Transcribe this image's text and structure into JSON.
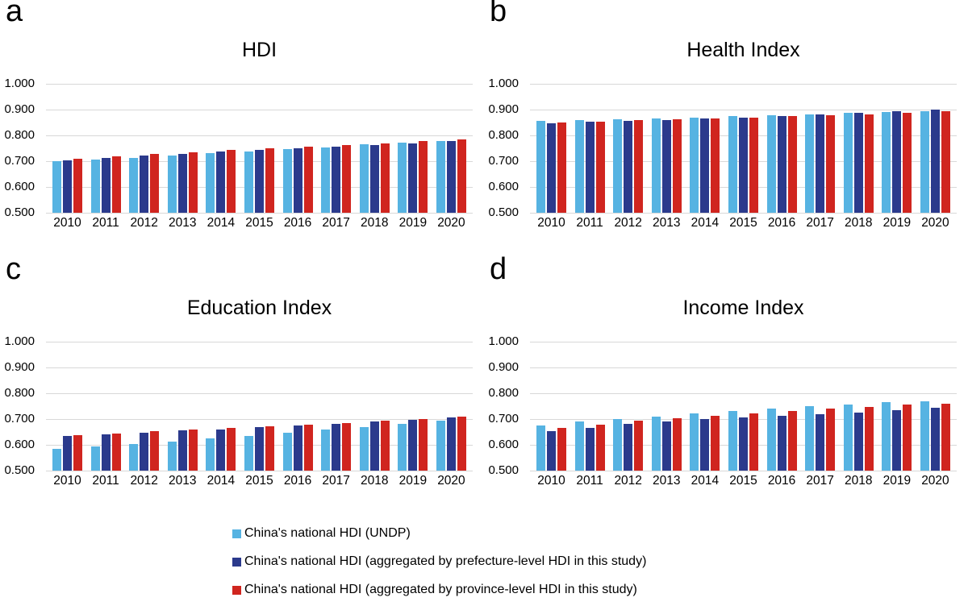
{
  "figure": {
    "background": "#FFFFFF",
    "grid_color": "#D8D8D8",
    "legend_position": "bottom",
    "legend": [
      {
        "key": "undp",
        "label": "China's national HDI (UNDP)",
        "color": "#56B3E2"
      },
      {
        "key": "prefecture",
        "label": "China's national HDI (aggregated by prefecture-level HDI in this study)",
        "color": "#2B3A8C"
      },
      {
        "key": "province",
        "label": "China's national HDI (aggregated by province-level HDI in this study)",
        "color": "#D0251F"
      }
    ]
  },
  "chart_data": [
    {
      "type": "bar",
      "panel_label": "a",
      "title": "HDI",
      "categories": [
        "2010",
        "2011",
        "2012",
        "2013",
        "2014",
        "2015",
        "2016",
        "2017",
        "2018",
        "2019",
        "2020"
      ],
      "ylim": [
        0.5,
        1.0
      ],
      "ytick_labels": [
        "1.000",
        "0.900",
        "0.800",
        "0.700",
        "0.600",
        "0.500"
      ],
      "grid": true,
      "series": [
        {
          "key": "undp",
          "name": "China's national HDI (UNDP)",
          "color": "#56B3E2",
          "values": [
            0.699,
            0.706,
            0.714,
            0.722,
            0.73,
            0.739,
            0.746,
            0.753,
            0.765,
            0.772,
            0.779
          ]
        },
        {
          "key": "prefecture",
          "name": "China's national HDI (aggregated by prefecture-level HDI in this study)",
          "color": "#2B3A8C",
          "values": [
            0.704,
            0.712,
            0.721,
            0.729,
            0.737,
            0.743,
            0.75,
            0.755,
            0.762,
            0.77,
            0.777
          ]
        },
        {
          "key": "province",
          "name": "China's national HDI (aggregated by province-level HDI in this study)",
          "color": "#D0251F",
          "values": [
            0.71,
            0.718,
            0.727,
            0.735,
            0.743,
            0.751,
            0.756,
            0.763,
            0.77,
            0.778,
            0.784
          ]
        }
      ]
    },
    {
      "type": "bar",
      "panel_label": "b",
      "title": "Health Index",
      "categories": [
        "2010",
        "2011",
        "2012",
        "2013",
        "2014",
        "2015",
        "2016",
        "2017",
        "2018",
        "2019",
        "2020"
      ],
      "ylim": [
        0.5,
        1.0
      ],
      "ytick_labels": [
        "1.000",
        "0.900",
        "0.800",
        "0.700",
        "0.600",
        "0.500"
      ],
      "grid": true,
      "series": [
        {
          "key": "undp",
          "name": "China's national HDI (UNDP)",
          "color": "#56B3E2",
          "values": [
            0.855,
            0.859,
            0.863,
            0.867,
            0.87,
            0.875,
            0.879,
            0.881,
            0.887,
            0.891,
            0.893
          ]
        },
        {
          "key": "prefecture",
          "name": "China's national HDI (aggregated by prefecture-level HDI in this study)",
          "color": "#2B3A8C",
          "values": [
            0.848,
            0.852,
            0.857,
            0.861,
            0.866,
            0.87,
            0.876,
            0.882,
            0.887,
            0.893,
            0.9
          ]
        },
        {
          "key": "province",
          "name": "China's national HDI (aggregated by province-level HDI in this study)",
          "color": "#D0251F",
          "values": [
            0.85,
            0.853,
            0.858,
            0.862,
            0.865,
            0.869,
            0.874,
            0.878,
            0.882,
            0.887,
            0.895
          ]
        }
      ]
    },
    {
      "type": "bar",
      "panel_label": "c",
      "title": "Education Index",
      "categories": [
        "2010",
        "2011",
        "2012",
        "2013",
        "2014",
        "2015",
        "2016",
        "2017",
        "2018",
        "2019",
        "2020"
      ],
      "ylim": [
        0.5,
        1.0
      ],
      "ytick_labels": [
        "1.000",
        "0.900",
        "0.800",
        "0.700",
        "0.600",
        "0.500"
      ],
      "grid": true,
      "series": [
        {
          "key": "undp",
          "name": "China's national HDI (UNDP)",
          "color": "#56B3E2",
          "values": [
            0.583,
            0.594,
            0.602,
            0.612,
            0.624,
            0.634,
            0.646,
            0.658,
            0.668,
            0.68,
            0.693
          ]
        },
        {
          "key": "prefecture",
          "name": "China's national HDI (aggregated by prefecture-level HDI in this study)",
          "color": "#2B3A8C",
          "values": [
            0.633,
            0.641,
            0.647,
            0.655,
            0.661,
            0.668,
            0.675,
            0.682,
            0.69,
            0.696,
            0.705
          ]
        },
        {
          "key": "province",
          "name": "China's national HDI (aggregated by province-level HDI in this study)",
          "color": "#D0251F",
          "values": [
            0.637,
            0.644,
            0.652,
            0.658,
            0.665,
            0.672,
            0.679,
            0.686,
            0.694,
            0.701,
            0.709
          ]
        }
      ]
    },
    {
      "type": "bar",
      "panel_label": "d",
      "title": "Income Index",
      "categories": [
        "2010",
        "2011",
        "2012",
        "2013",
        "2014",
        "2015",
        "2016",
        "2017",
        "2018",
        "2019",
        "2020"
      ],
      "ylim": [
        0.5,
        1.0
      ],
      "ytick_labels": [
        "1.000",
        "0.900",
        "0.800",
        "0.700",
        "0.600",
        "0.500"
      ],
      "grid": true,
      "series": [
        {
          "key": "undp",
          "name": "China's national HDI (UNDP)",
          "color": "#56B3E2",
          "values": [
            0.676,
            0.69,
            0.701,
            0.71,
            0.722,
            0.73,
            0.74,
            0.75,
            0.757,
            0.766,
            0.768
          ]
        },
        {
          "key": "prefecture",
          "name": "China's national HDI (aggregated by prefecture-level HDI in this study)",
          "color": "#2B3A8C",
          "values": [
            0.652,
            0.666,
            0.681,
            0.691,
            0.701,
            0.706,
            0.714,
            0.72,
            0.726,
            0.736,
            0.745
          ]
        },
        {
          "key": "province",
          "name": "China's national HDI (aggregated by province-level HDI in this study)",
          "color": "#D0251F",
          "values": [
            0.667,
            0.679,
            0.693,
            0.703,
            0.713,
            0.721,
            0.731,
            0.74,
            0.748,
            0.757,
            0.76
          ]
        }
      ]
    }
  ]
}
